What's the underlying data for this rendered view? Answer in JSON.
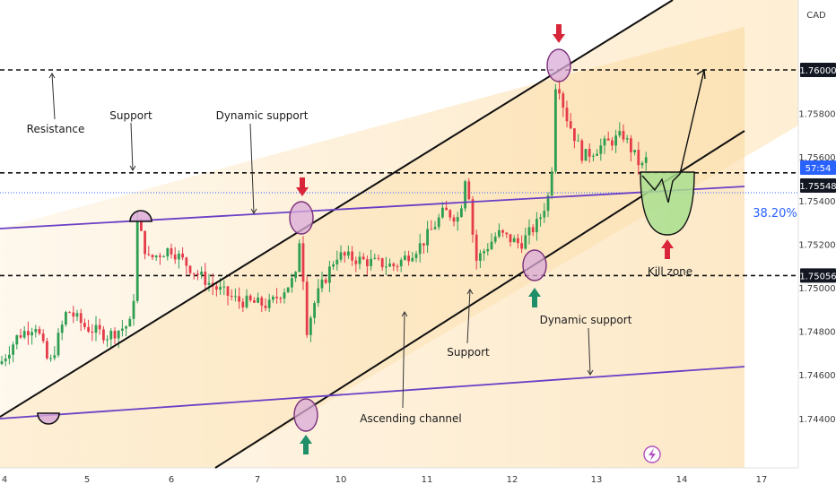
{
  "chart_data": {
    "type": "candlestick",
    "currency": "CAD",
    "price_axis": {
      "range": [
        1.7425,
        1.764
      ],
      "ticks": [
        "1.74400",
        "1.74600",
        "1.74800",
        "1.75000",
        "1.75200",
        "1.75400",
        "1.75600",
        "1.75800"
      ],
      "highlighted": [
        {
          "label": "1.76000",
          "value": 1.76
        },
        {
          "label": "57:54",
          "value": 1.75565
        },
        {
          "label": "1.75548",
          "value": 1.7552
        },
        {
          "label": "1.75056",
          "value": 1.75056
        }
      ]
    },
    "time_axis": {
      "ticks": [
        "4",
        "5",
        "6",
        "7",
        "10",
        "11",
        "12",
        "13",
        "14",
        "17"
      ]
    },
    "levels": {
      "resistance": 1.76,
      "support_upper": 1.75548,
      "support_lower": 1.75056,
      "current_price": 1.7552
    },
    "fib_label": "38.20%",
    "annotations": [
      "Resistance",
      "Support",
      "Dynamic support",
      "Dynamic support",
      "Support",
      "Ascending channel",
      "Kill zone"
    ],
    "colors": {
      "up": "#2e9e52",
      "down": "#e53c4a",
      "channel": "#101010",
      "dynamic_support": "#6a3fc6",
      "highlight_fill": "#d9a9d8",
      "kill_zone_fill": "#a8df8e",
      "arrow_red": "#d9253a",
      "arrow_green": "#1f8f6a",
      "current_price_tag": "#2962ff",
      "fib_text": "#2962ff",
      "channel_fill": "#fde8bf"
    },
    "lightning_icon": "lightning-icon"
  }
}
